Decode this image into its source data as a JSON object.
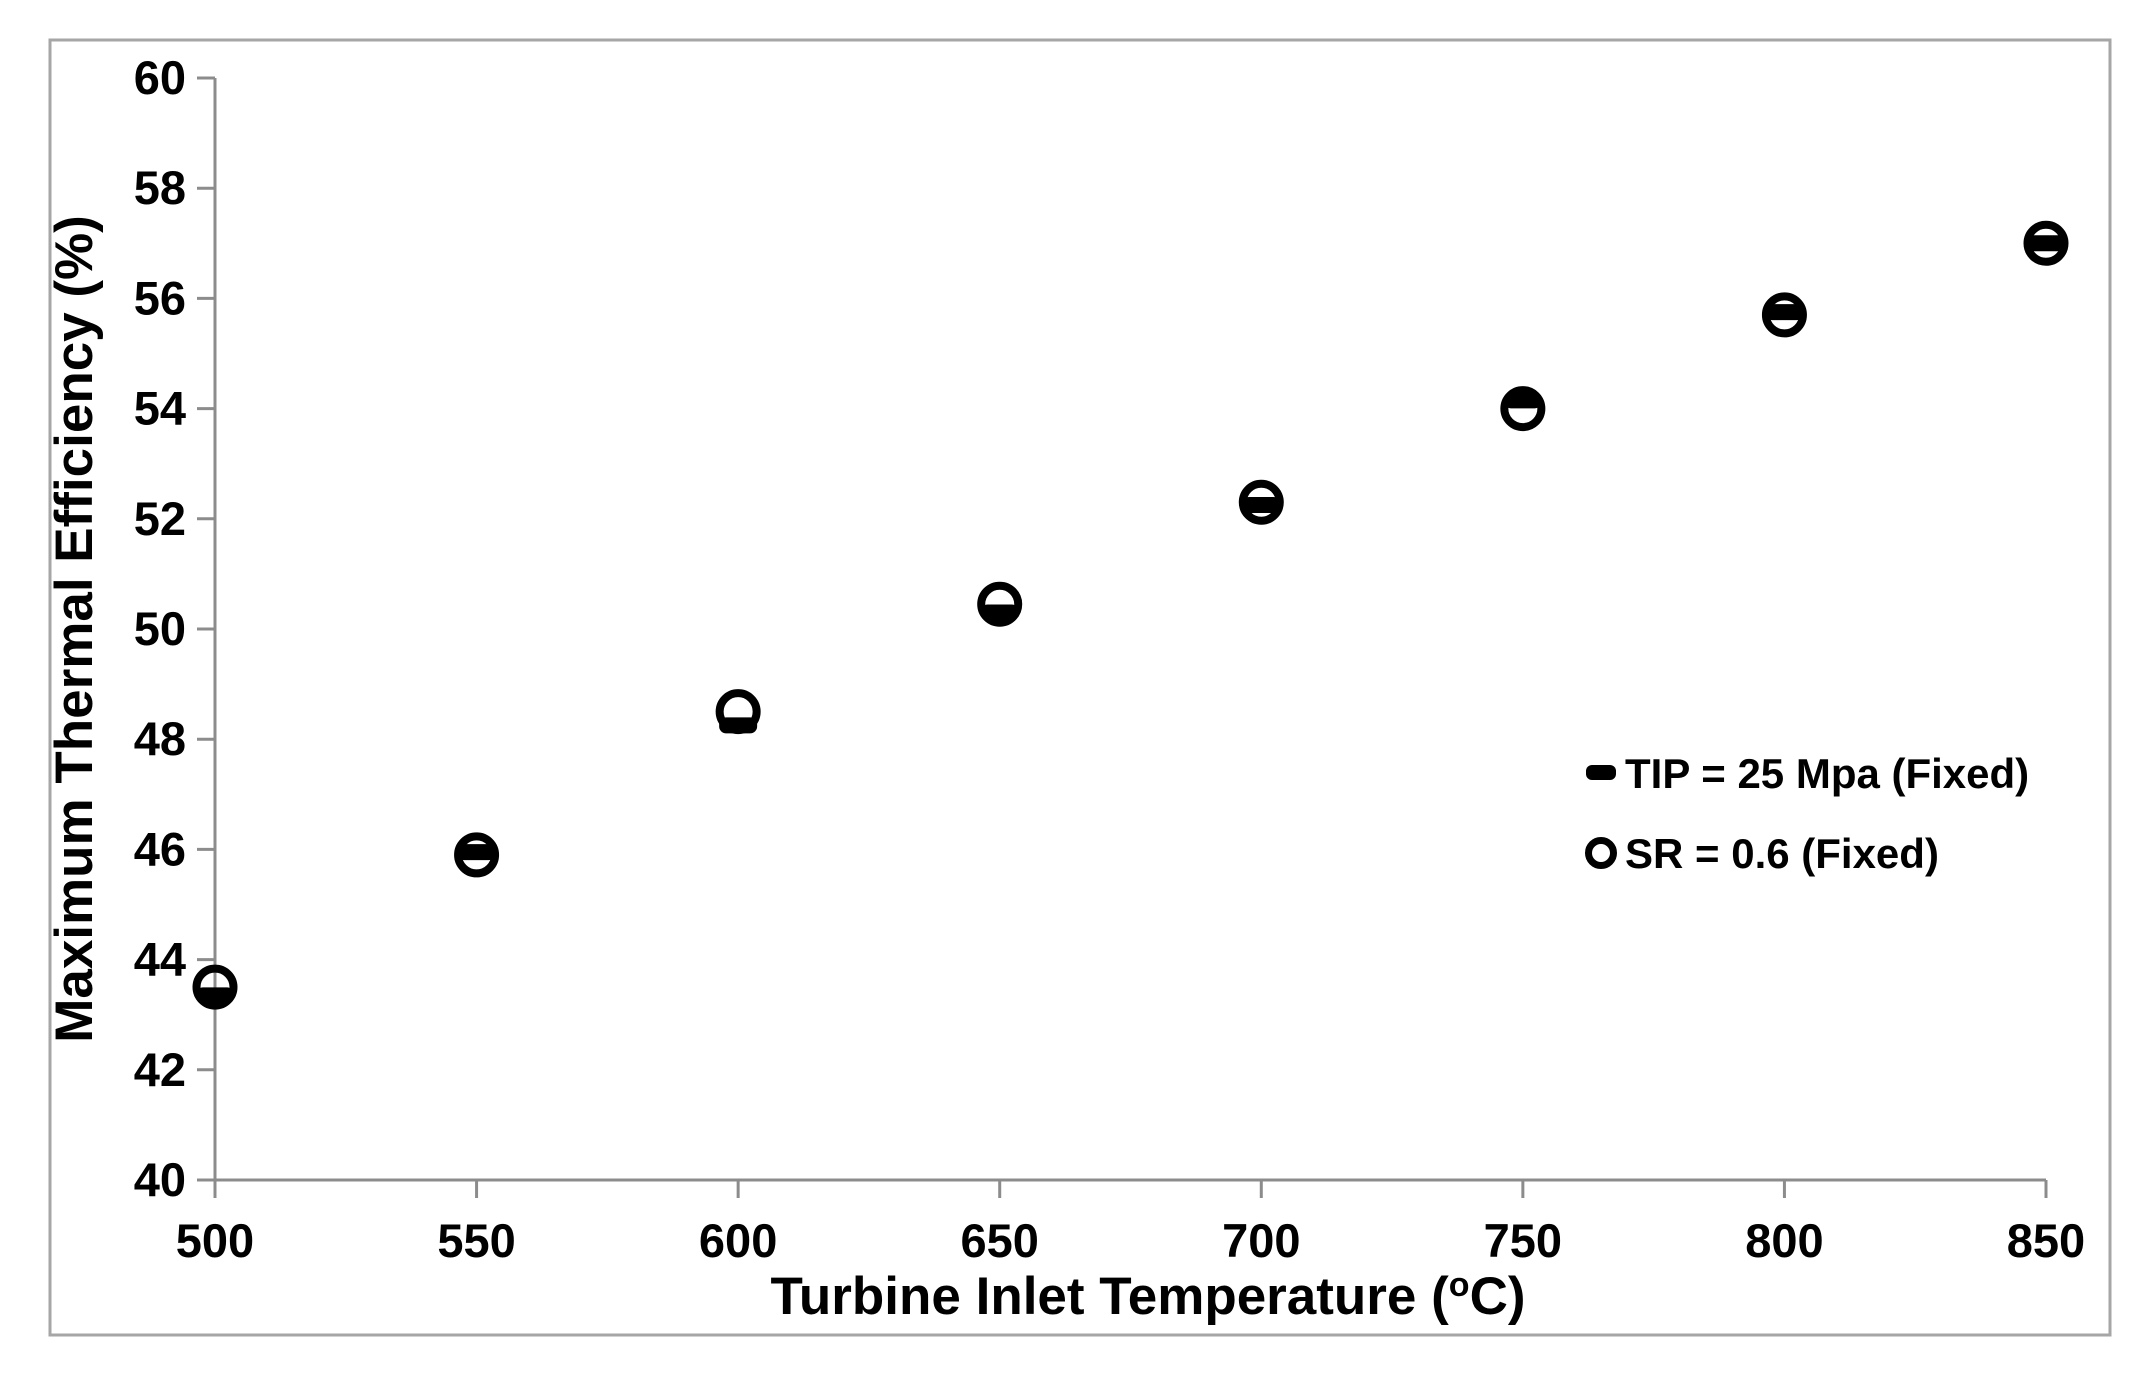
{
  "figure": {
    "background_color": "#ffffff",
    "border_color": "#a6a6a6",
    "axis_color": "#8c8c8c",
    "marker_color": "#000000",
    "text_color": "#000000"
  },
  "chart_data": {
    "type": "scatter",
    "title": "",
    "xlabel": "Turbine Inlet Temperature (°C)",
    "xlabel_base": "Turbine Inlet Temperature (",
    "xlabel_sup": "o",
    "xlabel_end": "C)",
    "ylabel": "Maximum Thermal Efficiency (%)",
    "xlim": [
      500,
      850
    ],
    "ylim": [
      40,
      60
    ],
    "x_ticks": [
      500,
      550,
      600,
      650,
      700,
      750,
      800,
      850
    ],
    "y_ticks": [
      40,
      42,
      44,
      46,
      48,
      50,
      52,
      54,
      56,
      58,
      60
    ],
    "grid": false,
    "legend_position": "inside-right",
    "x": [
      500,
      550,
      600,
      650,
      700,
      750,
      800,
      850
    ],
    "series": [
      {
        "name": "TIP = 25 Mpa (Fixed)",
        "marker": "dash",
        "values": [
          43.35,
          45.95,
          48.25,
          50.3,
          52.25,
          54.15,
          55.75,
          57.0
        ]
      },
      {
        "name": "SR = 0.6 (Fixed)",
        "marker": "open-circle",
        "values": [
          43.5,
          45.9,
          48.5,
          50.45,
          52.3,
          54.0,
          55.7,
          57.0
        ]
      }
    ]
  }
}
